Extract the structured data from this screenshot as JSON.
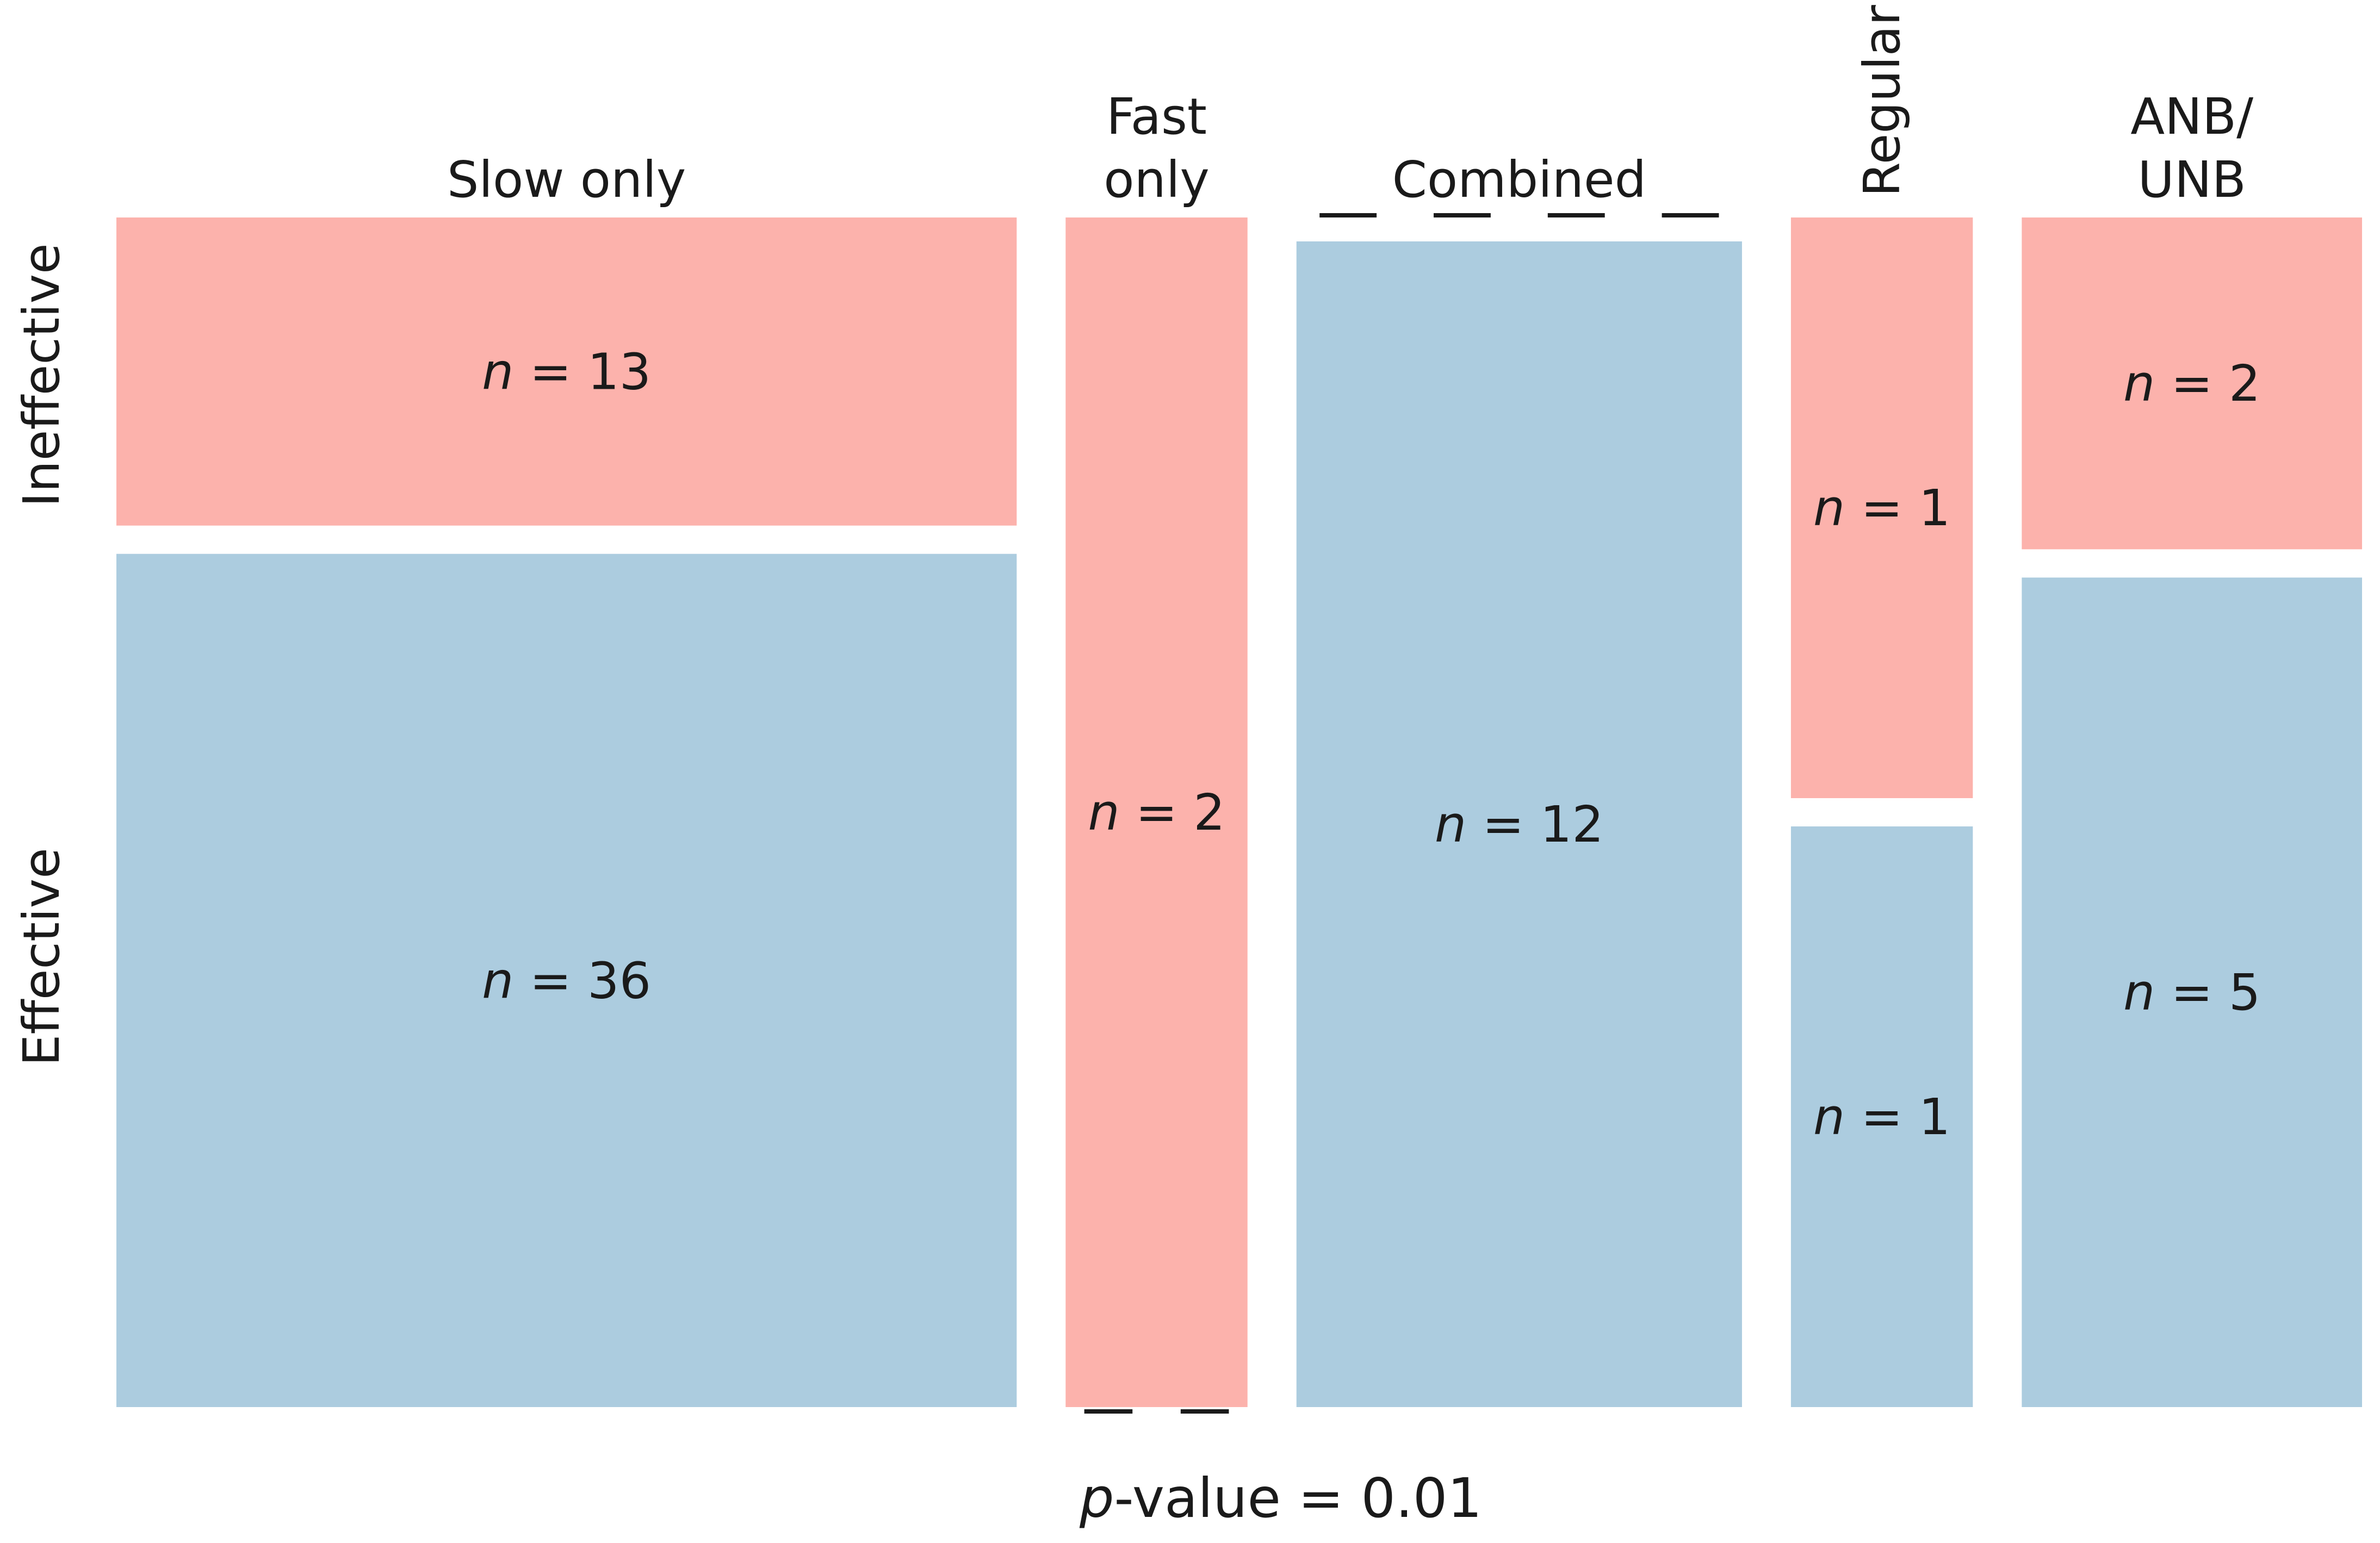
{
  "chart_data": {
    "type": "mosaic",
    "columns": [
      {
        "name": "Slow only",
        "label_lines": [
          "Slow only"
        ],
        "label_orientation": "horizontal",
        "ineffective": 13,
        "effective": 36
      },
      {
        "name": "Fast only",
        "label_lines": [
          "Fast",
          "only"
        ],
        "label_orientation": "horizontal",
        "ineffective": 2,
        "effective": 0
      },
      {
        "name": "Combined",
        "label_lines": [
          "Combined"
        ],
        "label_orientation": "horizontal",
        "ineffective": 0,
        "effective": 12
      },
      {
        "name": "Regular",
        "label_lines": [
          "Regular"
        ],
        "label_orientation": "vertical",
        "ineffective": 1,
        "effective": 1
      },
      {
        "name": "ANB/UNB",
        "label_lines": [
          "ANB/",
          "UNB"
        ],
        "label_orientation": "horizontal",
        "ineffective": 2,
        "effective": 5
      }
    ],
    "rows": [
      "Ineffective",
      "Effective"
    ],
    "colors": {
      "ineffective": "#fcb2ac",
      "effective": "#acccdf"
    },
    "n_symbol": "n",
    "equals": " = ",
    "p_value": {
      "symbol": "p",
      "text": "-value = 0.01"
    }
  }
}
